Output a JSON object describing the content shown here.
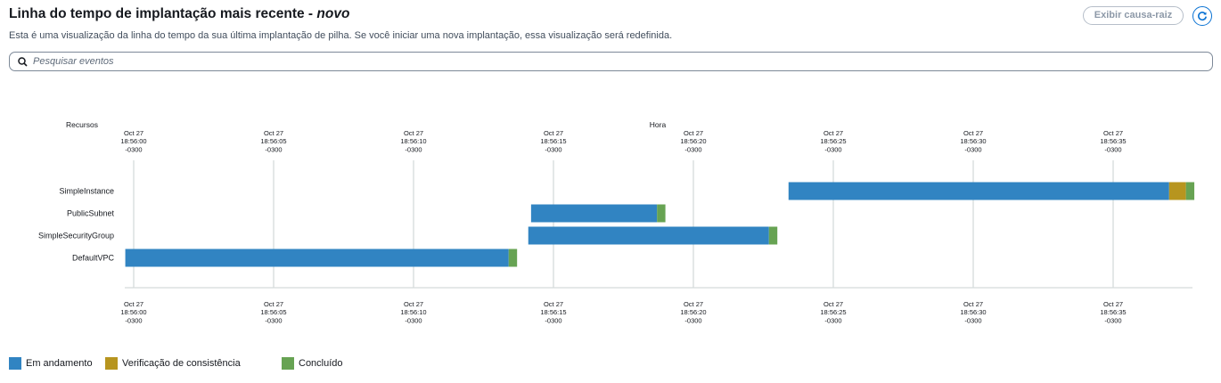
{
  "header": {
    "title": "Linha do tempo de implantação mais recente",
    "title_sep": " - ",
    "title_new": "novo",
    "subtitle": "Esta é uma visualização da linha do tempo da sua última implantação de pilha. Se você iniciar uma nova implantação, essa visualização será redefinida.",
    "root_cause_button": "Exibir causa-raiz",
    "refresh_icon": "refresh-icon"
  },
  "search": {
    "placeholder": "Pesquisar eventos",
    "icon": "search-icon"
  },
  "colors": {
    "in_progress": "#3184c2",
    "consistency": "#b7951f",
    "complete": "#67a353",
    "grid": "#d5dbdb"
  },
  "chart_data": {
    "type": "gantt",
    "y_label": "Recursos",
    "x_label": "Hora",
    "ticks": [
      {
        "date": "Oct 27",
        "time": "18:56:00",
        "tz": "-0300"
      },
      {
        "date": "Oct 27",
        "time": "18:56:05",
        "tz": "-0300"
      },
      {
        "date": "Oct 27",
        "time": "18:56:10",
        "tz": "-0300"
      },
      {
        "date": "Oct 27",
        "time": "18:56:15",
        "tz": "-0300"
      },
      {
        "date": "Oct 27",
        "time": "18:56:20",
        "tz": "-0300"
      },
      {
        "date": "Oct 27",
        "time": "18:56:25",
        "tz": "-0300"
      },
      {
        "date": "Oct 27",
        "time": "18:56:30",
        "tz": "-0300"
      },
      {
        "date": "Oct 27",
        "time": "18:56:35",
        "tz": "-0300"
      }
    ],
    "resources": [
      {
        "name": "SimpleInstance",
        "segments": [
          {
            "state": "in_progress",
            "start": "18:56:23.4",
            "end": "18:56:37.0"
          },
          {
            "state": "consistency",
            "start": "18:56:37.0",
            "end": "18:56:37.6"
          },
          {
            "state": "complete",
            "start": "18:56:37.6",
            "end": "18:56:37.9"
          }
        ]
      },
      {
        "name": "PublicSubnet",
        "segments": [
          {
            "state": "in_progress",
            "start": "18:56:14.2",
            "end": "18:56:18.7"
          },
          {
            "state": "complete",
            "start": "18:56:18.7",
            "end": "18:56:19.0"
          }
        ]
      },
      {
        "name": "SimpleSecurityGroup",
        "segments": [
          {
            "state": "in_progress",
            "start": "18:56:14.1",
            "end": "18:56:22.7"
          },
          {
            "state": "complete",
            "start": "18:56:22.7",
            "end": "18:56:23.0"
          }
        ]
      },
      {
        "name": "DefaultVPC",
        "segments": [
          {
            "state": "in_progress",
            "start": "18:55:59.7",
            "end": "18:56:13.4"
          },
          {
            "state": "complete",
            "start": "18:56:13.4",
            "end": "18:56:13.7"
          }
        ]
      }
    ],
    "legend": [
      {
        "state": "in_progress",
        "label": "Em andamento"
      },
      {
        "state": "consistency",
        "label": "Verificação de consistência"
      },
      {
        "state": "complete",
        "label": "Concluído"
      }
    ]
  }
}
